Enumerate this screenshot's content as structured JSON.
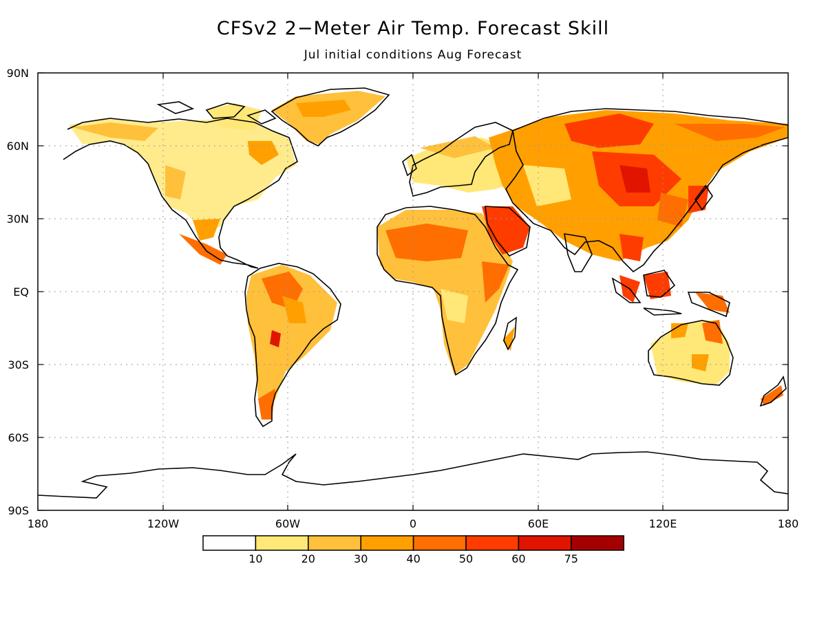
{
  "header": {
    "title": "CFSv2 2−Meter Air Temp. Forecast Skill",
    "subtitle": "Jul initial conditions   Aug Forecast"
  },
  "map": {
    "projection": "latitude-longitude",
    "lat_labels": [
      "90N",
      "60N",
      "30N",
      "EQ",
      "30S",
      "60S",
      "90S"
    ],
    "lon_labels": [
      "180",
      "120W",
      "60W",
      "0",
      "60E",
      "120E",
      "180"
    ],
    "grid": "dotted"
  },
  "legend": {
    "bins": [
      {
        "color": "#ffffff"
      },
      {
        "color": "#ffe878",
        "label": "10"
      },
      {
        "color": "#ffc03c",
        "label": "20"
      },
      {
        "color": "#ffa000",
        "label": "30"
      },
      {
        "color": "#ff6e00",
        "label": "40"
      },
      {
        "color": "#ff3c00",
        "label": "50"
      },
      {
        "color": "#e11400",
        "label": "60"
      },
      {
        "color": "#a50000",
        "label": "75"
      }
    ]
  },
  "colors": {
    "coastline": "#000000",
    "grid": "#999999",
    "background": "#ffffff"
  }
}
